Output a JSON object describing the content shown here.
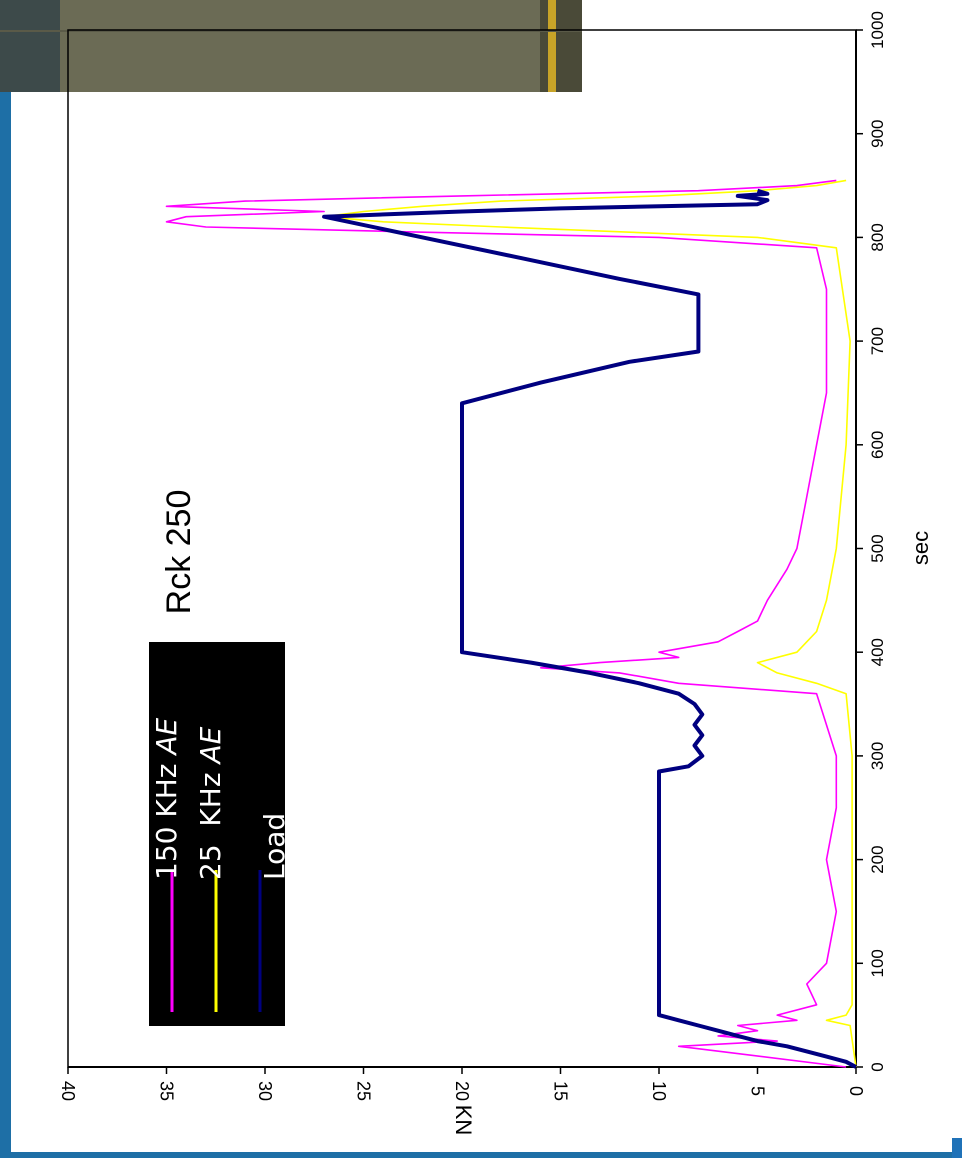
{
  "colors": {
    "accent_left": "#1e6fa6",
    "accent_right": "#1f72b8",
    "legend_bg": "#000000",
    "ae150": "#ff00ff",
    "ae25": "#ffff00",
    "load": "#000080"
  },
  "chart_data": {
    "type": "line",
    "orientation": "rotated-90-clockwise",
    "title": "Rck 250",
    "xlabel": "sec",
    "ylabel": "KN",
    "xlim": [
      0,
      1000
    ],
    "ylim": [
      0,
      40
    ],
    "x_ticks": [
      "0",
      "100",
      "200",
      "300",
      "400",
      "500",
      "600",
      "700",
      "800",
      "900",
      "1000"
    ],
    "y_ticks": [
      "0",
      "5",
      "10",
      "15",
      "20",
      "25",
      "30",
      "35",
      "40"
    ],
    "legend": {
      "position": "top-left",
      "entries": [
        {
          "prefix": "150 KHz ",
          "suffix": "AE",
          "color": "#ff00ff"
        },
        {
          "prefix": "25  KHz ",
          "suffix": "AE",
          "color": "#ffff00"
        },
        {
          "prefix": "Load",
          "suffix": "",
          "color": "#000080"
        }
      ]
    },
    "series": [
      {
        "name": "Load",
        "color": "#000080",
        "x": [
          0,
          5,
          10,
          15,
          20,
          25,
          30,
          35,
          40,
          45,
          50,
          100,
          150,
          200,
          250,
          285,
          290,
          300,
          310,
          320,
          330,
          340,
          350,
          360,
          370,
          380,
          390,
          400,
          450,
          500,
          550,
          600,
          640,
          660,
          680,
          690,
          700,
          720,
          745,
          760,
          780,
          800,
          820,
          825,
          828,
          832,
          836,
          840,
          842,
          845
        ],
        "y": [
          0,
          0.5,
          1.5,
          2.5,
          3.5,
          5,
          6,
          7,
          8,
          9,
          10,
          10,
          10,
          10,
          10,
          10,
          8.5,
          7.8,
          8.2,
          7.8,
          8.2,
          7.8,
          8.2,
          9,
          11,
          13.5,
          16.5,
          20,
          20,
          20,
          20,
          20,
          20,
          16,
          11.5,
          8,
          8,
          8,
          8,
          12,
          17,
          22,
          27,
          20,
          15,
          5,
          4.5,
          6,
          4.5,
          5
        ]
      },
      {
        "name": "150 KHz AE",
        "color": "#ff00ff",
        "x": [
          0,
          20,
          25,
          30,
          35,
          40,
          45,
          50,
          60,
          80,
          100,
          150,
          200,
          250,
          300,
          360,
          370,
          380,
          385,
          390,
          395,
          400,
          410,
          420,
          430,
          450,
          480,
          500,
          550,
          600,
          650,
          700,
          750,
          790,
          800,
          805,
          810,
          815,
          820,
          825,
          830,
          835,
          840,
          845,
          850,
          855
        ],
        "y": [
          0.5,
          9,
          4,
          7,
          5,
          6,
          3,
          4,
          2,
          2.5,
          1.5,
          1,
          1.5,
          1,
          1,
          2,
          9,
          12,
          16,
          13,
          9,
          10,
          7,
          6,
          5,
          4.5,
          3.5,
          3,
          2.5,
          2,
          1.5,
          1.5,
          1.5,
          2,
          10,
          22,
          33,
          35,
          34,
          27,
          35,
          31,
          20,
          8,
          3,
          1
        ]
      },
      {
        "name": "25  KHz AE",
        "color": "#ffff00",
        "x": [
          0,
          40,
          45,
          50,
          60,
          100,
          200,
          300,
          360,
          370,
          380,
          390,
          400,
          420,
          450,
          500,
          600,
          700,
          790,
          800,
          810,
          815,
          820,
          825,
          830,
          835,
          840,
          845,
          850,
          855
        ],
        "y": [
          0,
          0.3,
          1.5,
          0.5,
          0.2,
          0.2,
          0.2,
          0.2,
          0.5,
          2,
          4,
          5,
          3,
          2,
          1.5,
          1,
          0.5,
          0.3,
          1,
          5,
          18,
          24,
          27,
          25,
          22,
          18,
          10,
          5,
          2,
          0.5
        ]
      }
    ]
  }
}
